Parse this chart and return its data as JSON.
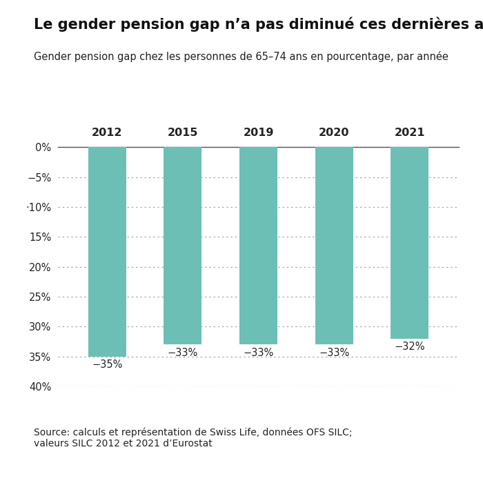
{
  "title": "Le gender pension gap n’a pas diminué ces dernières années",
  "subtitle": "Gender pension gap chez les personnes de 65–74 ans en pourcentage, par année",
  "categories": [
    "2012",
    "2015",
    "2019",
    "2020",
    "2021"
  ],
  "values": [
    -35,
    -33,
    -33,
    -33,
    -32
  ],
  "bar_color": "#6bbfb5",
  "background_color": "#ffffff",
  "ylim_min": -40,
  "ylim_max": 2,
  "ytick_vals": [
    0,
    -5,
    -10,
    -15,
    -20,
    -25,
    -30,
    -35,
    -40
  ],
  "ytick_labels": [
    "0%",
    "−5%",
    "·10%",
    "15%",
    "20%",
    "25%",
    "30%",
    "35%",
    "40%"
  ],
  "source_text": "Source: calculs et représentation de Swiss Life, données OFS SILC;\nvaleurs SILC 2012 et 2021 d’Eurostat",
  "bar_width": 0.5,
  "value_labels": [
    "−35%",
    "−33%",
    "−33%",
    "−33%",
    "−32%"
  ],
  "title_fontsize": 15,
  "subtitle_fontsize": 10.5,
  "source_fontsize": 10,
  "tick_fontsize": 10.5,
  "bar_label_fontsize": 10.5,
  "cat_label_fontsize": 11.5,
  "grid_color": "#aaaaaa",
  "spine_color": "#555555",
  "text_color": "#222222"
}
